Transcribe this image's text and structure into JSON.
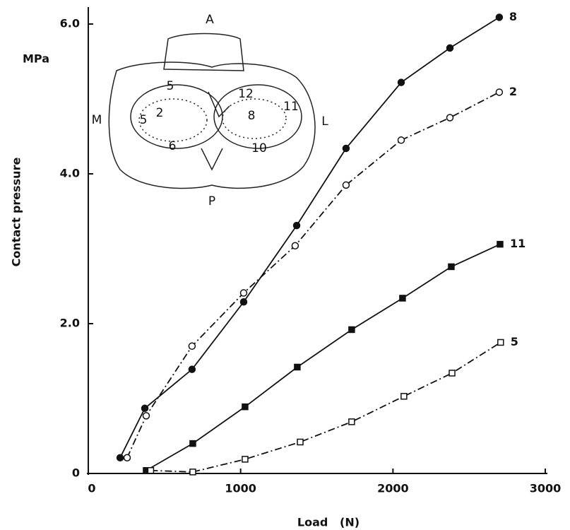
{
  "chart_data": {
    "type": "line",
    "y_unit": "MPa",
    "ylabel": "Contact pressure",
    "xlabel": "Load   (N)",
    "xlim": [
      0,
      3000
    ],
    "ylim": [
      0,
      6.2
    ],
    "xticks": [
      0,
      1000,
      2000,
      3000
    ],
    "yticks": [
      0,
      {
        "value": 2,
        "label": "2.0"
      },
      {
        "value": 4,
        "label": "4.0"
      },
      {
        "value": 6,
        "label": "6.0"
      }
    ],
    "grid": false,
    "series": [
      {
        "name": "8",
        "color": "#111111",
        "marker": "circle",
        "filled": true,
        "linestyle": "solid",
        "x": [
          209,
          371,
          681,
          1020,
          1368,
          1692,
          2054,
          2374,
          2698
        ],
        "values": [
          0.21,
          0.87,
          1.39,
          2.29,
          3.31,
          4.34,
          5.22,
          5.68,
          6.09
        ]
      },
      {
        "name": "2",
        "color": "#111111",
        "marker": "circle",
        "filled": false,
        "linestyle": "dashdot",
        "x": [
          255,
          380,
          681,
          1020,
          1358,
          1692,
          2054,
          2374,
          2698
        ],
        "values": [
          0.21,
          0.77,
          1.7,
          2.41,
          3.04,
          3.85,
          4.45,
          4.75,
          5.09
        ]
      },
      {
        "name": "11",
        "color": "#111111",
        "marker": "square",
        "filled": true,
        "linestyle": "solid",
        "x": [
          380,
          686,
          1029,
          1372,
          1729,
          2063,
          2383,
          2703
        ],
        "values": [
          0.04,
          0.4,
          0.89,
          1.42,
          1.92,
          2.34,
          2.76,
          3.06
        ]
      },
      {
        "name": "5",
        "color": "#111111",
        "marker": "square",
        "filled": false,
        "linestyle": "dashdot",
        "x": [
          410,
          686,
          1029,
          1391,
          1729,
          2072,
          2388,
          2707
        ],
        "values": [
          0.04,
          0.02,
          0.19,
          0.42,
          0.69,
          1.03,
          1.34,
          1.75
        ]
      }
    ],
    "inset_labels": [
      "A",
      "5",
      "12",
      "M",
      "5",
      "2",
      "8",
      "11",
      "L",
      "6",
      "10",
      "P"
    ]
  }
}
